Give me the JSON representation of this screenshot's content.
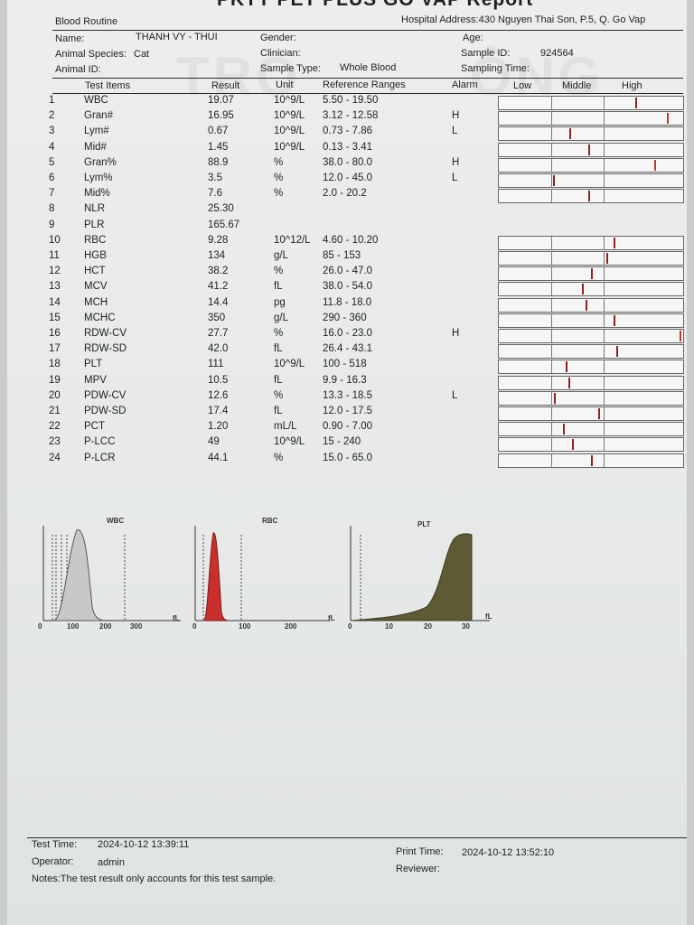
{
  "header": {
    "title": "PKTY PET PLUS GO VAP Report",
    "section": "Blood Routine",
    "hospital_address": "Hospital Address:430 Nguyen Thai Son, P.5, Q. Go Vap"
  },
  "patient": {
    "name_label": "Name:",
    "name_value": "THANH VY - THUI",
    "species_label": "Animal Species:",
    "species_value": "Cat",
    "id_label": "Animal ID:",
    "gender_label": "Gender:",
    "clinician_label": "Clinician:",
    "sample_type_label": "Sample Type:",
    "sample_type_value": "Whole Blood",
    "age_label": "Age:",
    "sample_id_label": "Sample ID:",
    "sample_id_value": "924564",
    "sampling_time_label": "Sampling Time:"
  },
  "table": {
    "headers": [
      "Test Items",
      "Result",
      "Unit",
      "Reference Ranges",
      "Alarm",
      "Low",
      "Middle",
      "High"
    ],
    "rows": [
      {
        "no": "1",
        "item": "WBC",
        "result": "19.07",
        "unit": "10^9/L",
        "range": "5.50 - 19.50",
        "alarm": "",
        "level": 0.95
      },
      {
        "no": "2",
        "item": "Gran#",
        "result": "16.95",
        "unit": "10^9/L",
        "range": "3.12 - 12.58",
        "alarm": "H",
        "level": 1.2
      },
      {
        "no": "3",
        "item": "Lym#",
        "result": "0.67",
        "unit": "10^9/L",
        "range": "0.73 - 7.86",
        "alarm": "L",
        "level": 0.43
      },
      {
        "no": "4",
        "item": "Mid#",
        "result": "1.45",
        "unit": "10^9/L",
        "range": "0.13 - 3.41",
        "alarm": "",
        "level": 0.58
      },
      {
        "no": "5",
        "item": "Gran%",
        "result": "88.9",
        "unit": "%",
        "range": "38.0 - 80.0",
        "alarm": "H",
        "level": 1.1
      },
      {
        "no": "6",
        "item": "Lym%",
        "result": "3.5",
        "unit": "%",
        "range": "12.0 - 45.0",
        "alarm": "L",
        "level": 0.3
      },
      {
        "no": "7",
        "item": "Mid%",
        "result": "7.6",
        "unit": "%",
        "range": "2.0 - 20.2",
        "alarm": "",
        "level": 0.58
      },
      {
        "no": "8",
        "item": "NLR",
        "result": "25.30",
        "unit": "",
        "range": "",
        "alarm": "",
        "level": null
      },
      {
        "no": "9",
        "item": "PLR",
        "result": "165.67",
        "unit": "",
        "range": "",
        "alarm": "",
        "level": null
      },
      {
        "no": "10",
        "item": "RBC",
        "result": "9.28",
        "unit": "10^12/L",
        "range": "4.60 - 10.20",
        "alarm": "",
        "level": 0.78
      },
      {
        "no": "11",
        "item": "HGB",
        "result": "134",
        "unit": "g/L",
        "range": "85 - 153",
        "alarm": "",
        "level": 0.72
      },
      {
        "no": "12",
        "item": "HCT",
        "result": "38.2",
        "unit": "%",
        "range": "26.0 - 47.0",
        "alarm": "",
        "level": 0.6
      },
      {
        "no": "13",
        "item": "MCV",
        "result": "41.2",
        "unit": "fL",
        "range": "38.0 - 54.0",
        "alarm": "",
        "level": 0.53
      },
      {
        "no": "14",
        "item": "MCH",
        "result": "14.4",
        "unit": "pg",
        "range": "11.8 - 18.0",
        "alarm": "",
        "level": 0.56
      },
      {
        "no": "15",
        "item": "MCHC",
        "result": "350",
        "unit": "g/L",
        "range": "290 - 360",
        "alarm": "",
        "level": 0.78
      },
      {
        "no": "16",
        "item": "RDW-CV",
        "result": "27.7",
        "unit": "%",
        "range": "16.0 - 23.0",
        "alarm": "H",
        "level": 1.3
      },
      {
        "no": "17",
        "item": "RDW-SD",
        "result": "42.0",
        "unit": "fL",
        "range": "26.4 - 43.1",
        "alarm": "",
        "level": 0.8
      },
      {
        "no": "18",
        "item": "PLT",
        "result": "111",
        "unit": "10^9/L",
        "range": "100 - 518",
        "alarm": "",
        "level": 0.4
      },
      {
        "no": "19",
        "item": "MPV",
        "result": "10.5",
        "unit": "fL",
        "range": "9.9 - 16.3",
        "alarm": "",
        "level": 0.42
      },
      {
        "no": "20",
        "item": "PDW-CV",
        "result": "12.6",
        "unit": "%",
        "range": "13.3 - 18.5",
        "alarm": "L",
        "level": 0.31
      },
      {
        "no": "21",
        "item": "PDW-SD",
        "result": "17.4",
        "unit": "fL",
        "range": "12.0 - 17.5",
        "alarm": "",
        "level": 0.66
      },
      {
        "no": "22",
        "item": "PCT",
        "result": "1.20",
        "unit": "mL/L",
        "range": "0.90 - 7.00",
        "alarm": "",
        "level": 0.38
      },
      {
        "no": "23",
        "item": "P-LCC",
        "result": "49",
        "unit": "10^9/L",
        "range": "15 - 240",
        "alarm": "",
        "level": 0.45
      },
      {
        "no": "24",
        "item": "P-LCR",
        "result": "44.1",
        "unit": "%",
        "range": "15.0 - 65.0",
        "alarm": "",
        "level": 0.6
      }
    ]
  },
  "histograms": [
    {
      "label": "WBC",
      "ticks": [
        "0",
        "100",
        "200",
        "300"
      ],
      "unit": "fL",
      "color": "#bdbdbd"
    },
    {
      "label": "RBC",
      "ticks": [
        "0",
        "100",
        "200"
      ],
      "unit": "fL",
      "color": "#c9302c"
    },
    {
      "label": "PLT",
      "ticks": [
        "0",
        "10",
        "20",
        "30"
      ],
      "unit": "fL",
      "color": "#5a5a32"
    }
  ],
  "footer": {
    "test_time_label": "Test Time:",
    "test_time_value": "2024-10-12 13:39:11",
    "operator_label": "Operator:",
    "operator_value": "admin",
    "notes": "Notes:The test result only accounts for this test sample.",
    "print_time_label": "Print Time:",
    "print_time_value": "2024-10-12 13:52:10",
    "reviewer_label": "Reviewer:"
  },
  "colors": {
    "marker": "#8b2320",
    "high_marker": "#c0392b"
  }
}
